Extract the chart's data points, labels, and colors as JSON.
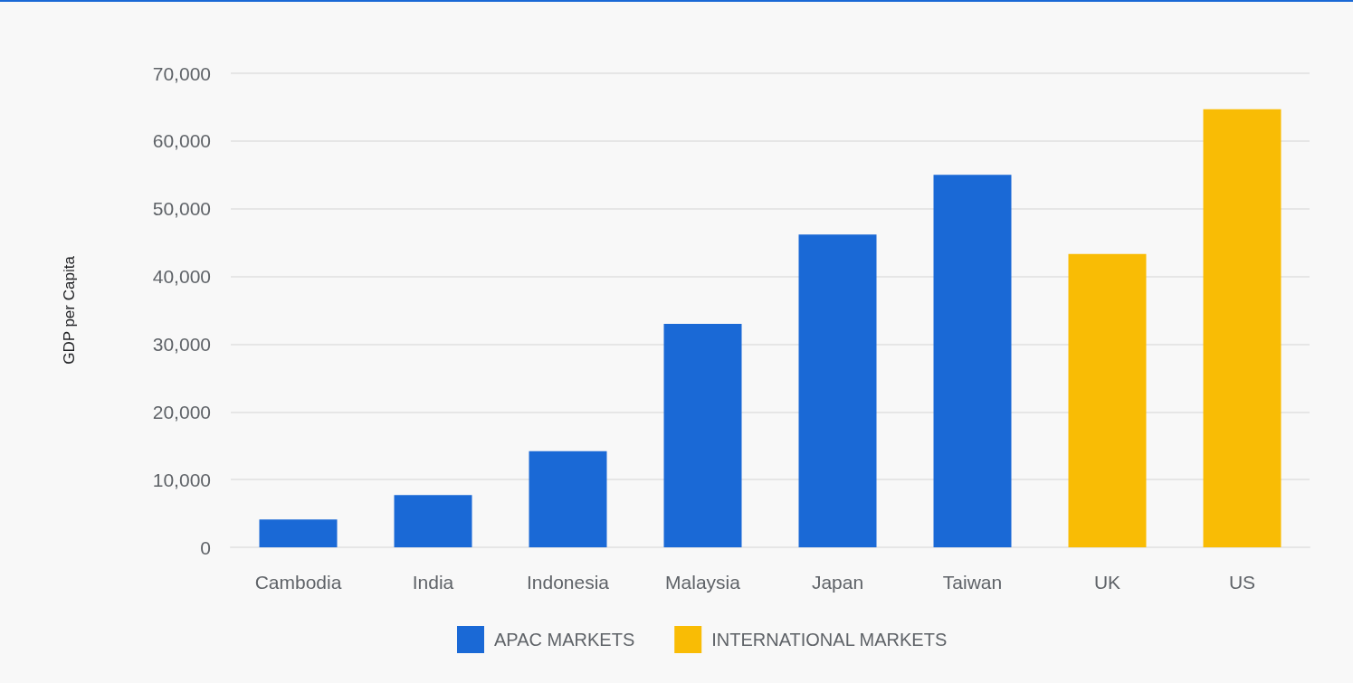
{
  "chart_data": {
    "type": "bar",
    "ylabel": "GDP per Capita",
    "categories": [
      "Cambodia",
      "India",
      "Indonesia",
      "Malaysia",
      "Japan",
      "Taiwan",
      "UK",
      "US"
    ],
    "series": [
      {
        "name": "APAC MARKETS",
        "color": "#1a69d6",
        "values": [
          4100,
          7700,
          14200,
          33000,
          46200,
          55000,
          null,
          null
        ]
      },
      {
        "name": "INTERNATIONAL MARKETS",
        "color": "#f9bc05",
        "values": [
          null,
          null,
          null,
          null,
          null,
          null,
          43300,
          64700
        ]
      }
    ],
    "stacked": true,
    "ylim": [
      0,
      70000
    ],
    "yticks": [
      0,
      {
        "value": 10000,
        "label": "10,000"
      },
      {
        "value": 20000,
        "label": "20,000"
      },
      {
        "value": 30000,
        "label": "30,000"
      },
      {
        "value": 40000,
        "label": "40,000"
      },
      {
        "value": 50000,
        "label": "50,000"
      },
      {
        "value": 60000,
        "label": "60,000"
      },
      {
        "value": 70000,
        "label": "70,000"
      }
    ],
    "grid": "y",
    "legend": "bottom"
  }
}
